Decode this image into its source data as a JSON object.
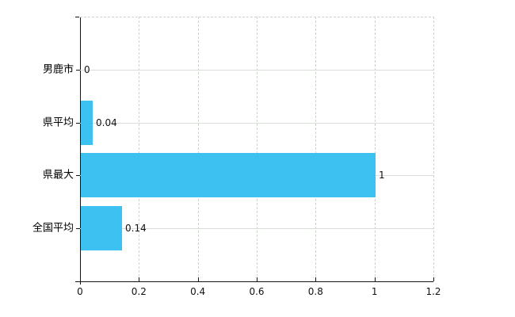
{
  "chart_data": {
    "type": "bar",
    "orientation": "horizontal",
    "title": "",
    "xlabel": "",
    "ylabel": "",
    "categories": [
      "男鹿市",
      "県平均",
      "県最大",
      "全国平均"
    ],
    "values": [
      0,
      0.04,
      1,
      0.14
    ],
    "value_labels": [
      "0",
      "0.04",
      "1",
      "0.14"
    ],
    "x_ticks": [
      "0",
      "0.2",
      "0.4",
      "0.6",
      "0.8",
      "1",
      "1.2"
    ],
    "xlim": [
      0,
      1.2
    ],
    "grid": true,
    "legend": false,
    "bar_color": "#3CC1F0",
    "grid_color": "#D7DED5",
    "axis_color": "#141414",
    "text_color": "#111111",
    "background_color": "#FFFFFF"
  }
}
